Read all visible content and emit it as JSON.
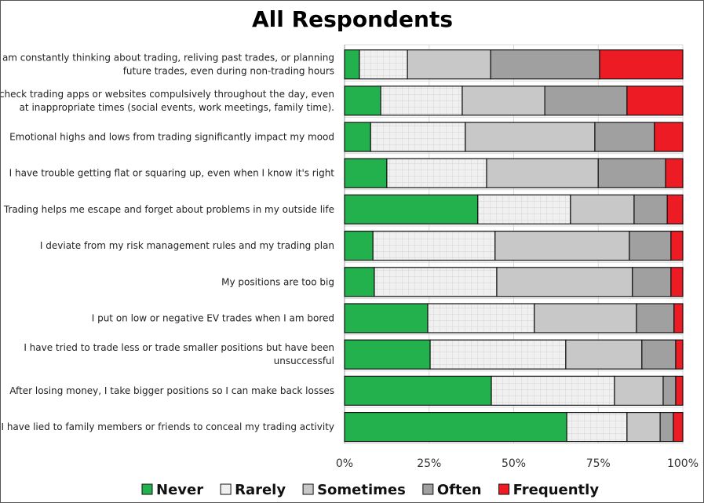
{
  "chart_data": {
    "type": "bar",
    "orientation": "horizontal",
    "stacked": true,
    "title": "All Respondents",
    "xlim": [
      0,
      100
    ],
    "xticks": [
      "0%",
      "25%",
      "50%",
      "75%",
      "100%"
    ],
    "grid": true,
    "legend_position": "bottom",
    "categories": [
      [
        "I am constantly thinking about trading, reliving past trades, or planning",
        "future trades, even during non-trading hours"
      ],
      [
        "I check trading apps or websites compulsively throughout the day, even",
        "at inappropriate times (social events, work meetings, family time)."
      ],
      [
        "Emotional highs and lows from trading significantly impact my mood"
      ],
      [
        "I have trouble getting flat or squaring up, even when I know it's right"
      ],
      [
        "Trading helps me escape and forget about problems in my outside life"
      ],
      [
        "I deviate from my risk management rules and my trading plan"
      ],
      [
        "My positions are too big"
      ],
      [
        "I put on low or negative EV trades when I am bored"
      ],
      [
        "I have tried to trade less or trade smaller positions but have been",
        "unsuccessful"
      ],
      [
        "After losing money, I take bigger positions so I can make back losses"
      ],
      [
        "I have lied to family members or friends to conceal my trading activity"
      ]
    ],
    "series": [
      {
        "name": "Never",
        "color": "#22b14c",
        "values": [
          4.4,
          10.7,
          7.7,
          12.5,
          39.4,
          8.4,
          8.8,
          24.6,
          25.3,
          43.4,
          65.7
        ]
      },
      {
        "name": "Rarely",
        "color": "#f0f0f0",
        "pattern": "grid",
        "values": [
          14.2,
          24.1,
          28.0,
          29.5,
          27.4,
          36.1,
          36.2,
          31.5,
          40.1,
          36.4,
          17.8
        ]
      },
      {
        "name": "Sometimes",
        "color": "#c8c8c8",
        "values": [
          24.6,
          24.4,
          38.3,
          33.0,
          18.8,
          39.7,
          40.1,
          30.2,
          22.5,
          14.4,
          9.8
        ]
      },
      {
        "name": "Often",
        "color": "#a0a0a0",
        "values": [
          32.2,
          24.3,
          17.6,
          19.9,
          9.8,
          12.3,
          11.4,
          11.1,
          10.0,
          3.7,
          3.9
        ]
      },
      {
        "name": "Frequently",
        "color": "#ed1c24",
        "values": [
          24.6,
          16.5,
          8.4,
          5.1,
          4.6,
          3.5,
          3.5,
          2.6,
          2.1,
          2.1,
          2.8
        ]
      }
    ]
  }
}
